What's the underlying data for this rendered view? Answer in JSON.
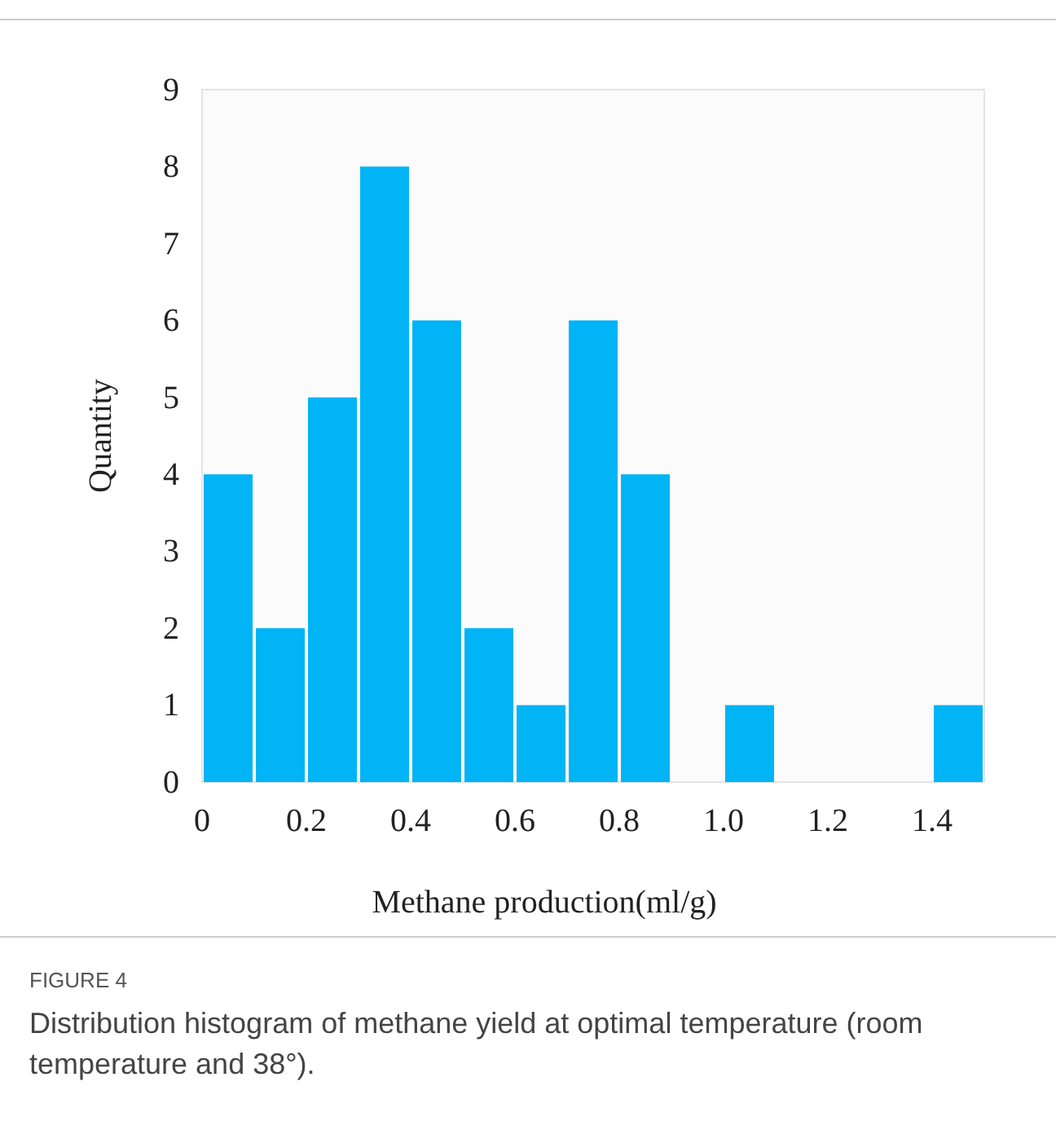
{
  "chart_data": {
    "type": "histogram",
    "xlabel": "Methane production(ml/g)",
    "ylabel": "Quantity",
    "bins": [
      0,
      0.1,
      0.2,
      0.3,
      0.4,
      0.5,
      0.6,
      0.7,
      0.8,
      0.9,
      1.0,
      1.1,
      1.2,
      1.3,
      1.4,
      1.5
    ],
    "values": [
      4,
      2,
      5,
      8,
      6,
      2,
      1,
      6,
      4,
      0,
      1,
      0,
      0,
      0,
      1
    ],
    "color": "#00b4f5",
    "xlim": [
      0,
      1.5
    ],
    "xticks": [
      0,
      0.2,
      0.4,
      0.6,
      0.8,
      {
        "value": 1.0,
        "label": "1.0"
      },
      1.2,
      1.4
    ],
    "ylim": [
      0,
      9
    ],
    "yticks": [
      0,
      1,
      2,
      3,
      4,
      5,
      6,
      7,
      8,
      9
    ],
    "annotations": [
      "FIGURE 4",
      "Distribution histogram of methane yield at optimal temperature (room temperature and 38°)."
    ]
  }
}
